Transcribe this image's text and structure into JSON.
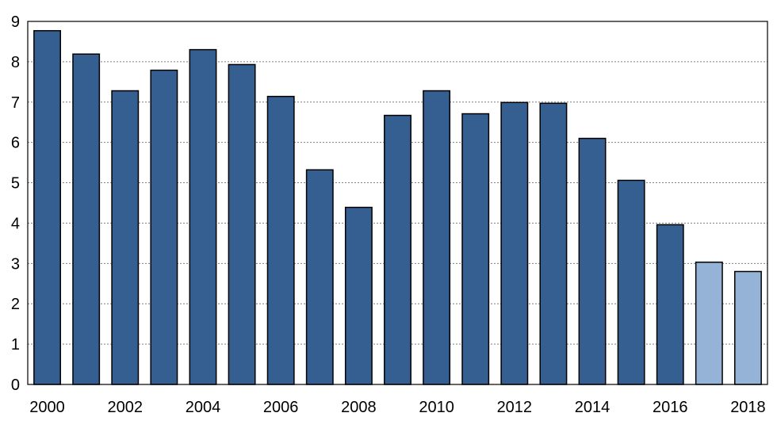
{
  "chart_data": {
    "type": "bar",
    "title": "",
    "xlabel": "",
    "ylabel": "",
    "ylim": [
      0,
      9
    ],
    "yticks": [
      0,
      1,
      2,
      3,
      4,
      5,
      6,
      7,
      8,
      9
    ],
    "grid": true,
    "legend": "none",
    "categories": [
      "2000",
      "2001",
      "2002",
      "2003",
      "2004",
      "2005",
      "2006",
      "2007",
      "2008",
      "2009",
      "2010",
      "2011",
      "2012",
      "2013",
      "2014",
      "2015",
      "2016",
      "2017",
      "2018"
    ],
    "xtick_labels": [
      "2000",
      "2002",
      "2004",
      "2006",
      "2008",
      "2010",
      "2012",
      "2014",
      "2016",
      "2018"
    ],
    "values": [
      8.77,
      8.19,
      7.28,
      7.79,
      8.3,
      7.93,
      7.14,
      5.32,
      4.39,
      6.67,
      7.28,
      6.71,
      6.99,
      6.97,
      6.1,
      5.06,
      3.96,
      3.03,
      2.8
    ],
    "colors": {
      "actual": "#365F91",
      "projected": "#95B3D7",
      "grid": "#7f7f7f",
      "axis": "#000000"
    },
    "projected_categories": [
      "2017",
      "2018"
    ]
  }
}
